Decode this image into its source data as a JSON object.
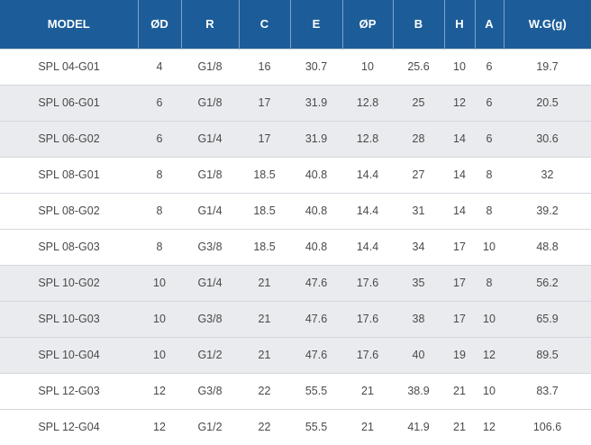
{
  "table": {
    "headers": [
      "MODEL",
      "ØD",
      "R",
      "C",
      "E",
      "ØP",
      "B",
      "H",
      "A",
      "W.G(g)"
    ],
    "rows": [
      [
        "SPL 04-G01",
        "4",
        "G1/8",
        "16",
        "30.7",
        "10",
        "25.6",
        "10",
        "6",
        "19.7"
      ],
      [
        "SPL 06-G01",
        "6",
        "G1/8",
        "17",
        "31.9",
        "12.8",
        "25",
        "12",
        "6",
        "20.5"
      ],
      [
        "SPL 06-G02",
        "6",
        "G1/4",
        "17",
        "31.9",
        "12.8",
        "28",
        "14",
        "6",
        "30.6"
      ],
      [
        "SPL 08-G01",
        "8",
        "G1/8",
        "18.5",
        "40.8",
        "14.4",
        "27",
        "14",
        "8",
        "32"
      ],
      [
        "SPL 08-G02",
        "8",
        "G1/4",
        "18.5",
        "40.8",
        "14.4",
        "31",
        "14",
        "8",
        "39.2"
      ],
      [
        "SPL 08-G03",
        "8",
        "G3/8",
        "18.5",
        "40.8",
        "14.4",
        "34",
        "17",
        "10",
        "48.8"
      ],
      [
        "SPL 10-G02",
        "10",
        "G1/4",
        "21",
        "47.6",
        "17.6",
        "35",
        "17",
        "8",
        "56.2"
      ],
      [
        "SPL 10-G03",
        "10",
        "G3/8",
        "21",
        "47.6",
        "17.6",
        "38",
        "17",
        "10",
        "65.9"
      ],
      [
        "SPL 10-G04",
        "10",
        "G1/2",
        "21",
        "47.6",
        "17.6",
        "40",
        "19",
        "12",
        "89.5"
      ],
      [
        "SPL 12-G03",
        "12",
        "G3/8",
        "22",
        "55.5",
        "21",
        "38.9",
        "21",
        "10",
        "83.7"
      ],
      [
        "SPL 12-G04",
        "12",
        "G1/2",
        "22",
        "55.5",
        "21",
        "41.9",
        "21",
        "12",
        "106.6"
      ]
    ],
    "shaded_rows": [
      1,
      2,
      6,
      7,
      8
    ],
    "colors": {
      "header_bg": "#1c5d99",
      "header_text": "#ffffff",
      "shade_bg": "#e9ebee",
      "cell_text": "#4a4a4a"
    }
  }
}
